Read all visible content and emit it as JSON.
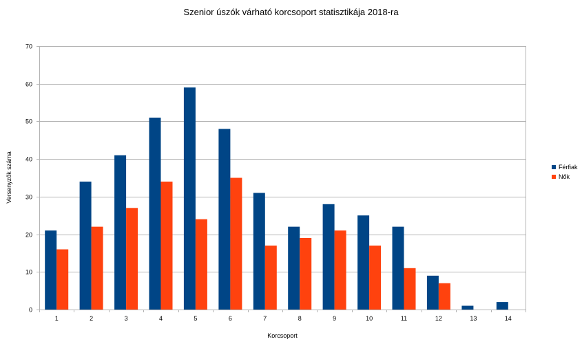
{
  "chart_data": {
    "type": "bar",
    "title": "Szenior úszók várható korcsoport statisztikája 2018-ra",
    "xlabel": "Korcsoport",
    "ylabel": "Versenyzők száma",
    "categories": [
      "1",
      "2",
      "3",
      "4",
      "5",
      "6",
      "7",
      "8",
      "9",
      "10",
      "11",
      "12",
      "13",
      "14"
    ],
    "series": [
      {
        "name": "Férfiak",
        "color": "#004586",
        "values": [
          21,
          34,
          41,
          51,
          59,
          48,
          31,
          22,
          28,
          25,
          22,
          9,
          1,
          2
        ]
      },
      {
        "name": "Nők",
        "color": "#ff420e",
        "values": [
          16,
          22,
          27,
          34,
          24,
          35,
          17,
          19,
          21,
          17,
          11,
          7,
          0,
          0
        ]
      }
    ],
    "ylim": [
      0,
      70
    ],
    "yticks": [
      0,
      10,
      20,
      30,
      40,
      50,
      60,
      70
    ],
    "grid": true,
    "legend_position": "right"
  }
}
